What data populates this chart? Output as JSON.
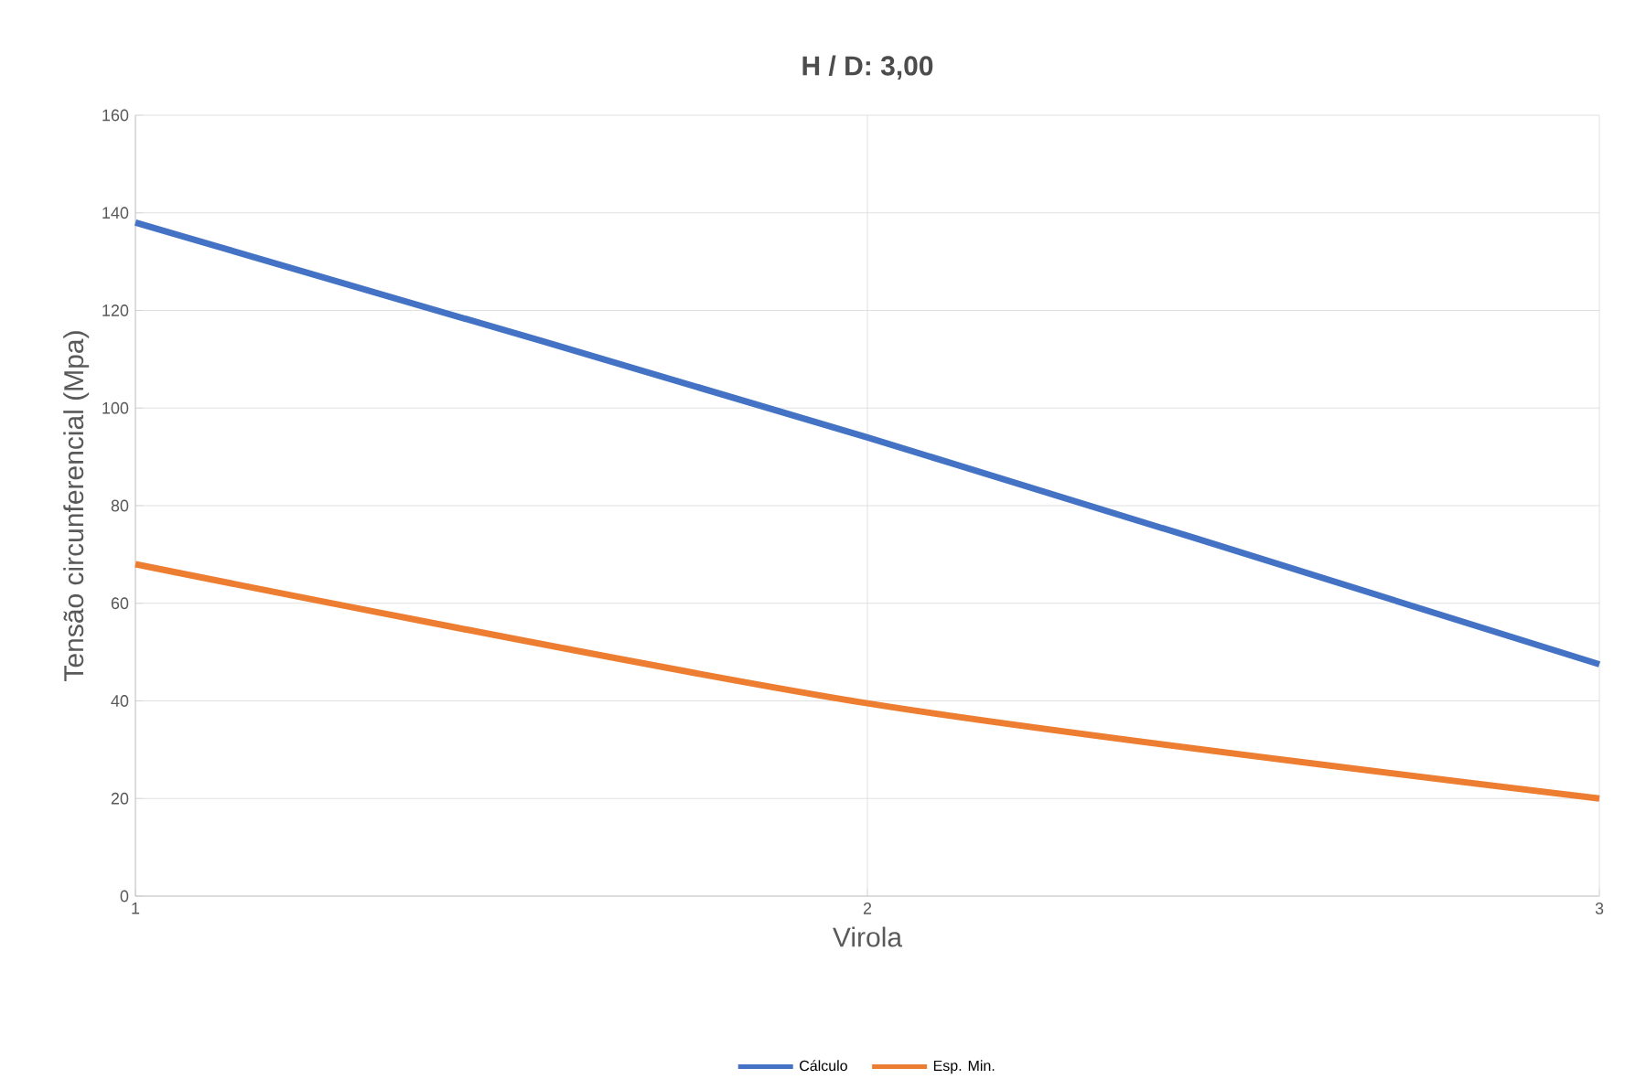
{
  "chart_data": {
    "type": "line",
    "title": "H / D: 3,00",
    "xlabel": "Virola",
    "ylabel": "Tensão circunferencial (Mpa)",
    "x": [
      1,
      2,
      3
    ],
    "series": [
      {
        "name": "Cálculo",
        "color": "#4472c4",
        "values": [
          138,
          94,
          47.5
        ]
      },
      {
        "name": "Esp. Min.",
        "color": "#ed7d31",
        "values": [
          68,
          39.5,
          20
        ]
      }
    ],
    "xlim": [
      1,
      3
    ],
    "xticks": [
      1,
      2,
      3
    ],
    "ylim": [
      0,
      160
    ],
    "yticks": [
      0,
      20,
      40,
      60,
      80,
      100,
      120,
      140,
      160
    ],
    "grid": true,
    "legend": "bottom",
    "marker": "none",
    "line_style": "solid"
  }
}
